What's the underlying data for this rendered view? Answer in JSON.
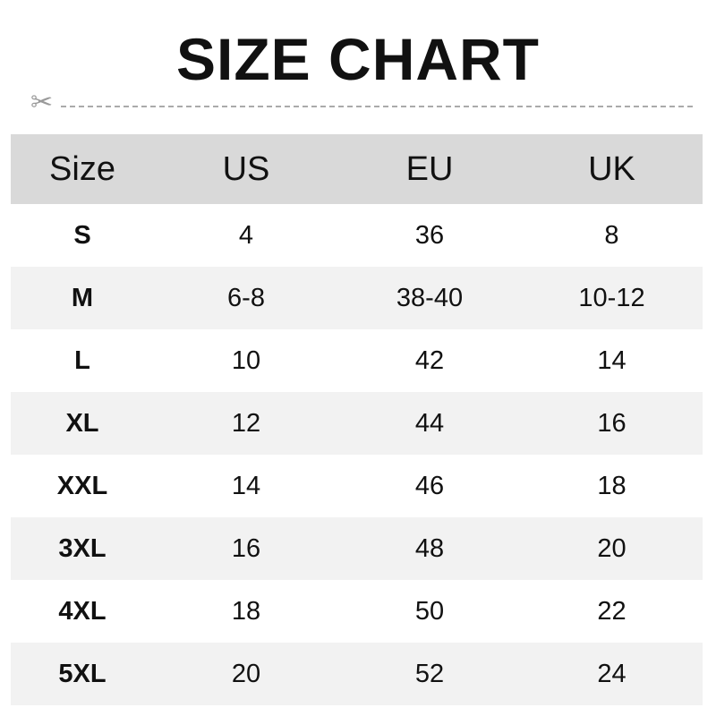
{
  "title": "SIZE CHART",
  "icons": {
    "cut": "scissors-icon"
  },
  "colors": {
    "header_bg": "#d9d9d9",
    "alt_row_bg": "#f2f2f2",
    "dash": "#aaaaaa"
  },
  "table": {
    "headers": [
      "Size",
      "US",
      "EU",
      "UK"
    ],
    "rows": [
      [
        "S",
        "4",
        "36",
        "8"
      ],
      [
        "M",
        "6-8",
        "38-40",
        "10-12"
      ],
      [
        "L",
        "10",
        "42",
        "14"
      ],
      [
        "XL",
        "12",
        "44",
        "16"
      ],
      [
        "XXL",
        "14",
        "46",
        "18"
      ],
      [
        "3XL",
        "16",
        "48",
        "20"
      ],
      [
        "4XL",
        "18",
        "50",
        "22"
      ],
      [
        "5XL",
        "20",
        "52",
        "24"
      ]
    ]
  }
}
